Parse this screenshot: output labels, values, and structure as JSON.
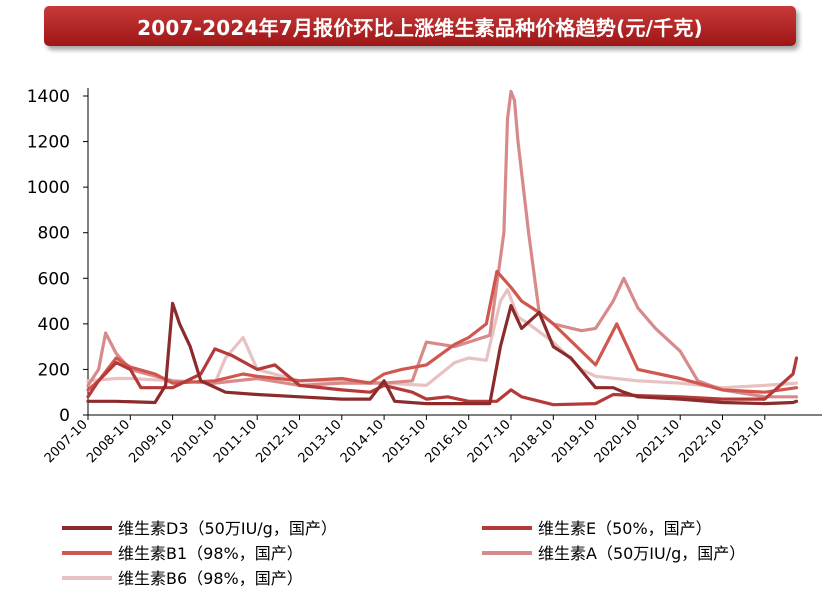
{
  "title": "2007-2024年7月报价环比上涨维生素品种价格趋势(元/千克)",
  "chart_data": {
    "type": "line",
    "title": "2007-2024年7月报价环比上涨维生素品种价格趋势(元/千克)",
    "xlabel": "",
    "ylabel": "",
    "ylim": [
      0,
      1400
    ],
    "yticks": [
      0,
      200,
      400,
      600,
      800,
      1000,
      1200,
      1400
    ],
    "x_tick_labels": [
      "2007-10",
      "2008-10",
      "2009-10",
      "2010-10",
      "2011-10",
      "2012-10",
      "2013-10",
      "2014-10",
      "2015-10",
      "2016-10",
      "2017-10",
      "2018-10",
      "2019-10",
      "2020-10",
      "2021-10",
      "2022-10",
      "2023-10"
    ],
    "grid": false,
    "legend_position": "bottom",
    "series": [
      {
        "name": "维生素D3（50万IU/g，国产）",
        "color": "#8c2b2b",
        "points": [
          [
            "2007-10",
            60
          ],
          [
            "2008-06",
            60
          ],
          [
            "2009-05",
            55
          ],
          [
            "2009-08",
            130
          ],
          [
            "2009-10",
            490
          ],
          [
            "2009-12",
            400
          ],
          [
            "2010-03",
            300
          ],
          [
            "2010-06",
            150
          ],
          [
            "2011-01",
            100
          ],
          [
            "2011-10",
            90
          ],
          [
            "2012-10",
            80
          ],
          [
            "2013-10",
            70
          ],
          [
            "2014-06",
            70
          ],
          [
            "2014-10",
            150
          ],
          [
            "2015-01",
            60
          ],
          [
            "2015-10",
            50
          ],
          [
            "2016-10",
            50
          ],
          [
            "2017-04",
            50
          ],
          [
            "2017-07",
            300
          ],
          [
            "2017-10",
            480
          ],
          [
            "2018-01",
            380
          ],
          [
            "2018-06",
            450
          ],
          [
            "2018-10",
            300
          ],
          [
            "2019-03",
            250
          ],
          [
            "2019-10",
            120
          ],
          [
            "2020-03",
            120
          ],
          [
            "2020-06",
            100
          ],
          [
            "2020-10",
            80
          ],
          [
            "2021-10",
            70
          ],
          [
            "2022-10",
            55
          ],
          [
            "2023-10",
            50
          ],
          [
            "2024-06",
            55
          ],
          [
            "2024-07",
            60
          ]
        ]
      },
      {
        "name": "维生素E（50%，国产）",
        "color": "#b43a3a",
        "points": [
          [
            "2007-10",
            80
          ],
          [
            "2008-01",
            150
          ],
          [
            "2008-06",
            230
          ],
          [
            "2008-10",
            200
          ],
          [
            "2009-01",
            120
          ],
          [
            "2009-10",
            120
          ],
          [
            "2010-06",
            180
          ],
          [
            "2010-10",
            290
          ],
          [
            "2011-03",
            260
          ],
          [
            "2011-10",
            200
          ],
          [
            "2012-03",
            220
          ],
          [
            "2012-10",
            130
          ],
          [
            "2013-10",
            110
          ],
          [
            "2014-06",
            100
          ],
          [
            "2014-10",
            130
          ],
          [
            "2015-06",
            100
          ],
          [
            "2015-10",
            70
          ],
          [
            "2016-04",
            80
          ],
          [
            "2016-10",
            60
          ],
          [
            "2017-06",
            60
          ],
          [
            "2017-10",
            110
          ],
          [
            "2018-01",
            80
          ],
          [
            "2018-10",
            45
          ],
          [
            "2019-10",
            50
          ],
          [
            "2020-03",
            90
          ],
          [
            "2020-10",
            85
          ],
          [
            "2021-10",
            80
          ],
          [
            "2022-10",
            70
          ],
          [
            "2023-10",
            70
          ],
          [
            "2024-06",
            180
          ],
          [
            "2024-07",
            250
          ]
        ]
      },
      {
        "name": "维生素B1（98%，国产）",
        "color": "#d0574f",
        "points": [
          [
            "2007-10",
            110
          ],
          [
            "2008-01",
            150
          ],
          [
            "2008-06",
            250
          ],
          [
            "2008-10",
            210
          ],
          [
            "2009-05",
            180
          ],
          [
            "2009-10",
            140
          ],
          [
            "2010-10",
            150
          ],
          [
            "2011-06",
            180
          ],
          [
            "2011-10",
            170
          ],
          [
            "2012-10",
            150
          ],
          [
            "2013-10",
            160
          ],
          [
            "2014-06",
            140
          ],
          [
            "2014-10",
            180
          ],
          [
            "2015-03",
            200
          ],
          [
            "2015-10",
            220
          ],
          [
            "2016-06",
            310
          ],
          [
            "2016-10",
            340
          ],
          [
            "2017-03",
            400
          ],
          [
            "2017-06",
            630
          ],
          [
            "2017-10",
            560
          ],
          [
            "2018-01",
            500
          ],
          [
            "2018-06",
            450
          ],
          [
            "2018-10",
            400
          ],
          [
            "2019-10",
            220
          ],
          [
            "2020-04",
            400
          ],
          [
            "2020-10",
            200
          ],
          [
            "2021-10",
            160
          ],
          [
            "2022-10",
            110
          ],
          [
            "2023-10",
            100
          ],
          [
            "2024-07",
            120
          ]
        ]
      },
      {
        "name": "维生素A（50万IU/g，国产）",
        "color": "#d88a8a",
        "points": [
          [
            "2007-10",
            130
          ],
          [
            "2008-01",
            200
          ],
          [
            "2008-03",
            360
          ],
          [
            "2008-06",
            270
          ],
          [
            "2008-10",
            200
          ],
          [
            "2009-10",
            150
          ],
          [
            "2010-10",
            140
          ],
          [
            "2011-10",
            160
          ],
          [
            "2012-10",
            130
          ],
          [
            "2013-10",
            140
          ],
          [
            "2014-10",
            140
          ],
          [
            "2015-06",
            150
          ],
          [
            "2015-10",
            320
          ],
          [
            "2016-06",
            300
          ],
          [
            "2016-10",
            320
          ],
          [
            "2017-04",
            350
          ],
          [
            "2017-08",
            800
          ],
          [
            "2017-09",
            1300
          ],
          [
            "2017-10",
            1420
          ],
          [
            "2017-11",
            1380
          ],
          [
            "2017-12",
            1200
          ],
          [
            "2018-03",
            800
          ],
          [
            "2018-06",
            450
          ],
          [
            "2018-10",
            400
          ],
          [
            "2019-06",
            370
          ],
          [
            "2019-10",
            380
          ],
          [
            "2020-03",
            500
          ],
          [
            "2020-06",
            600
          ],
          [
            "2020-10",
            470
          ],
          [
            "2021-03",
            380
          ],
          [
            "2021-10",
            280
          ],
          [
            "2022-03",
            150
          ],
          [
            "2022-10",
            110
          ],
          [
            "2023-10",
            80
          ],
          [
            "2024-07",
            80
          ]
        ]
      },
      {
        "name": "维生素B6（98%，国产）",
        "color": "#e8c2c2",
        "points": [
          [
            "2007-10",
            150
          ],
          [
            "2008-06",
            160
          ],
          [
            "2008-10",
            160
          ],
          [
            "2009-10",
            150
          ],
          [
            "2010-10",
            140
          ],
          [
            "2011-01",
            250
          ],
          [
            "2011-06",
            340
          ],
          [
            "2011-10",
            200
          ],
          [
            "2012-10",
            150
          ],
          [
            "2013-10",
            150
          ],
          [
            "2014-10",
            140
          ],
          [
            "2015-10",
            130
          ],
          [
            "2016-06",
            230
          ],
          [
            "2016-10",
            250
          ],
          [
            "2017-03",
            240
          ],
          [
            "2017-07",
            500
          ],
          [
            "2017-09",
            550
          ],
          [
            "2017-12",
            430
          ],
          [
            "2018-03",
            400
          ],
          [
            "2018-10",
            320
          ],
          [
            "2019-06",
            200
          ],
          [
            "2019-10",
            170
          ],
          [
            "2020-10",
            150
          ],
          [
            "2021-10",
            140
          ],
          [
            "2022-10",
            120
          ],
          [
            "2023-10",
            130
          ],
          [
            "2024-07",
            140
          ]
        ]
      }
    ]
  }
}
